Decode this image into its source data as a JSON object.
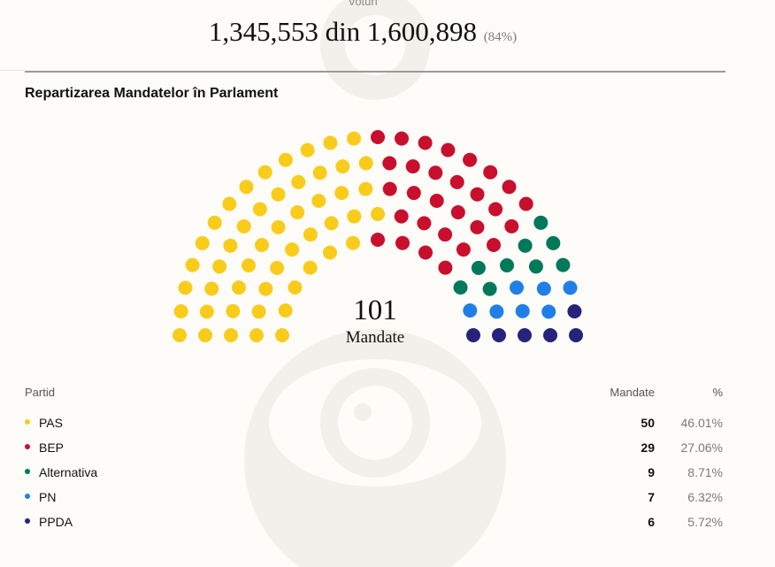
{
  "votes": {
    "label": "Voturi",
    "counted": "1,345,553",
    "connector": "din",
    "total": "1,600,898",
    "percent": "(84%)"
  },
  "section_title": "Repartizarea Mandatelor în Parlament",
  "center": {
    "total": "101",
    "label": "Mandate"
  },
  "table": {
    "headers": {
      "party": "Partid",
      "seats": "Mandate",
      "percent": "%"
    }
  },
  "chart_data": {
    "type": "parliament",
    "total_seats": 101,
    "parties": [
      {
        "name": "PAS",
        "seats": 50,
        "percent": "46.01%",
        "color": "#f9cc1c"
      },
      {
        "name": "BEP",
        "seats": 29,
        "percent": "27.06%",
        "color": "#c8102e"
      },
      {
        "name": "Alternativa",
        "seats": 9,
        "percent": "8.71%",
        "color": "#00785a"
      },
      {
        "name": "PN",
        "seats": 7,
        "percent": "6.32%",
        "color": "#1f7fe6"
      },
      {
        "name": "PPDA",
        "seats": 6,
        "percent": "5.72%",
        "color": "#25237a"
      }
    ]
  }
}
